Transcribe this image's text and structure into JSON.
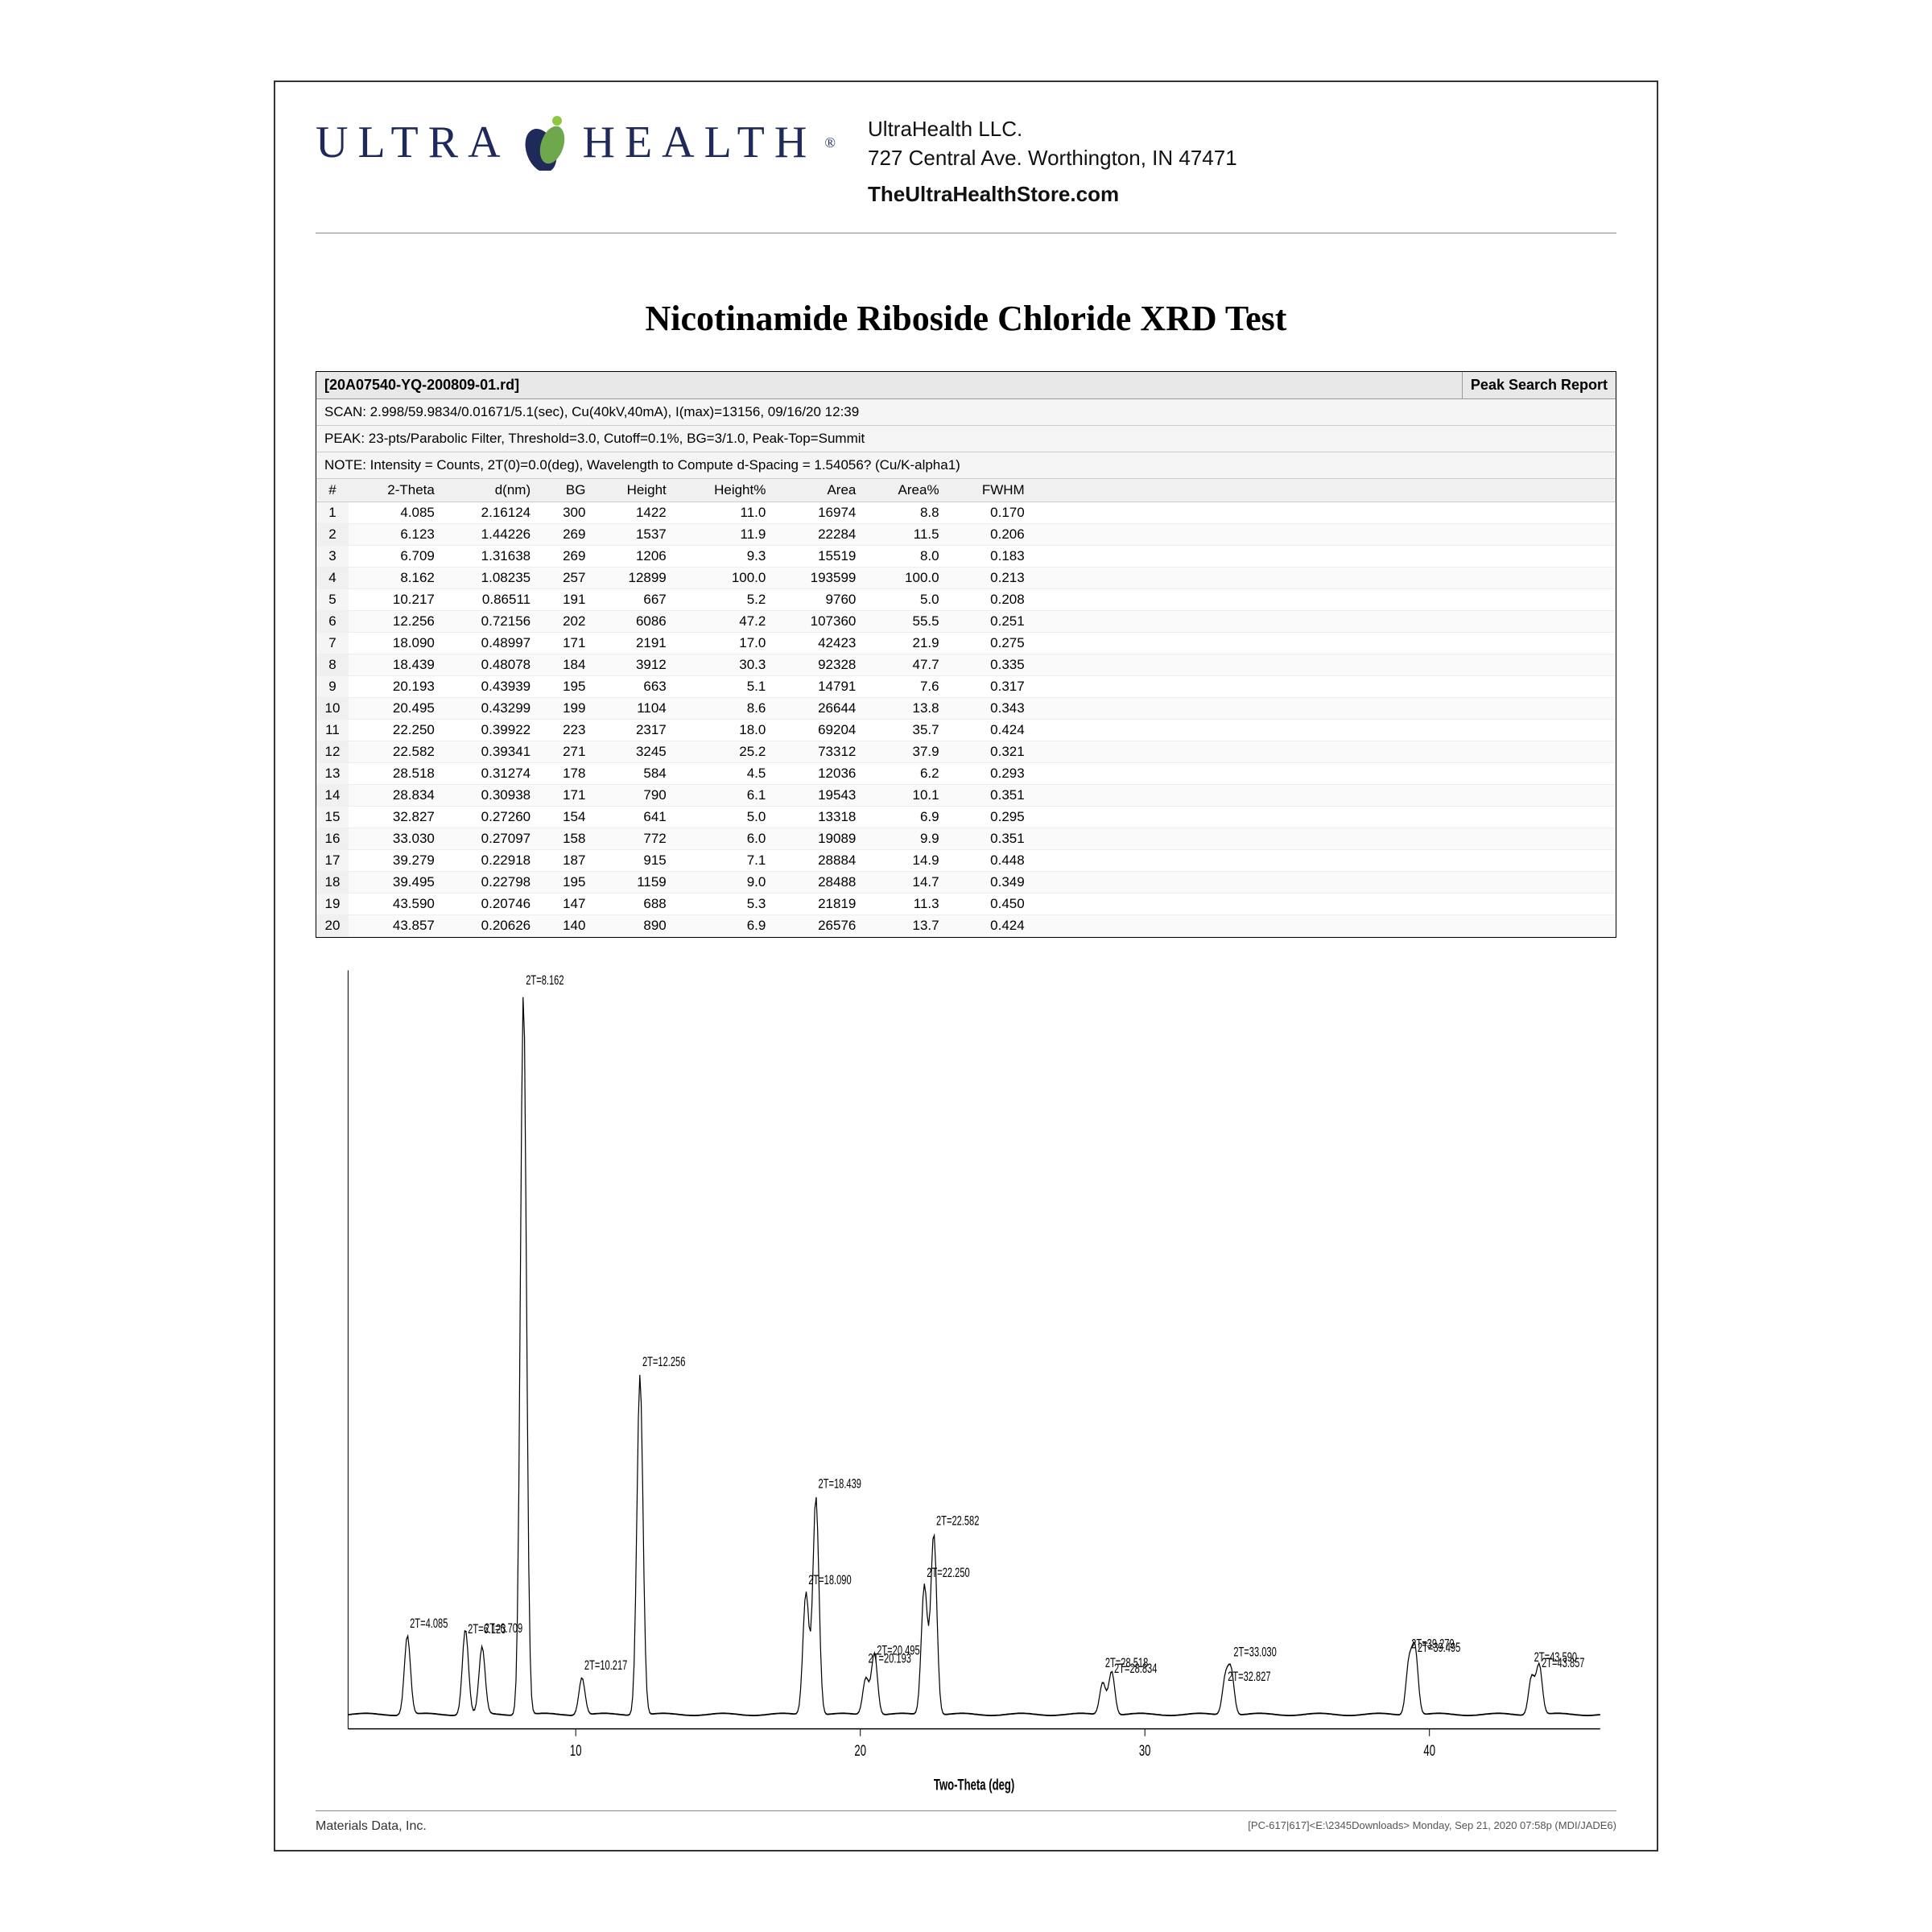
{
  "company": {
    "logo_text_left": "ULTRA",
    "logo_text_right": "HEALTH",
    "name": "UltraHealth LLC.",
    "address": "727 Central Ave. Worthington, IN 47471",
    "website": "TheUltraHealthStore.com"
  },
  "title": "Nicotinamide Riboside Chloride XRD Test",
  "report": {
    "file_id": "[20A07540-YQ-200809-01.rd]",
    "header_right": "Peak Search Report",
    "scan_line": "SCAN: 2.998/59.9834/0.01671/5.1(sec), Cu(40kV,40mA), I(max)=13156, 09/16/20 12:39",
    "peak_line": "PEAK: 23-pts/Parabolic Filter, Threshold=3.0, Cutoff=0.1%, BG=3/1.0, Peak-Top=Summit",
    "note_line": "NOTE: Intensity = Counts, 2T(0)=0.0(deg), Wavelength to Compute d-Spacing = 1.54056? (Cu/K-alpha1)",
    "columns": [
      "#",
      "2-Theta",
      "d(nm)",
      "BG",
      "Height",
      "Height%",
      "Area",
      "Area%",
      "FWHM"
    ],
    "rows": [
      [
        "1",
        "4.085",
        "2.16124",
        "300",
        "1422",
        "11.0",
        "16974",
        "8.8",
        "0.170"
      ],
      [
        "2",
        "6.123",
        "1.44226",
        "269",
        "1537",
        "11.9",
        "22284",
        "11.5",
        "0.206"
      ],
      [
        "3",
        "6.709",
        "1.31638",
        "269",
        "1206",
        "9.3",
        "15519",
        "8.0",
        "0.183"
      ],
      [
        "4",
        "8.162",
        "1.08235",
        "257",
        "12899",
        "100.0",
        "193599",
        "100.0",
        "0.213"
      ],
      [
        "5",
        "10.217",
        "0.86511",
        "191",
        "667",
        "5.2",
        "9760",
        "5.0",
        "0.208"
      ],
      [
        "6",
        "12.256",
        "0.72156",
        "202",
        "6086",
        "47.2",
        "107360",
        "55.5",
        "0.251"
      ],
      [
        "7",
        "18.090",
        "0.48997",
        "171",
        "2191",
        "17.0",
        "42423",
        "21.9",
        "0.275"
      ],
      [
        "8",
        "18.439",
        "0.48078",
        "184",
        "3912",
        "30.3",
        "92328",
        "47.7",
        "0.335"
      ],
      [
        "9",
        "20.193",
        "0.43939",
        "195",
        "663",
        "5.1",
        "14791",
        "7.6",
        "0.317"
      ],
      [
        "10",
        "20.495",
        "0.43299",
        "199",
        "1104",
        "8.6",
        "26644",
        "13.8",
        "0.343"
      ],
      [
        "11",
        "22.250",
        "0.39922",
        "223",
        "2317",
        "18.0",
        "69204",
        "35.7",
        "0.424"
      ],
      [
        "12",
        "22.582",
        "0.39341",
        "271",
        "3245",
        "25.2",
        "73312",
        "37.9",
        "0.321"
      ],
      [
        "13",
        "28.518",
        "0.31274",
        "178",
        "584",
        "4.5",
        "12036",
        "6.2",
        "0.293"
      ],
      [
        "14",
        "28.834",
        "0.30938",
        "171",
        "790",
        "6.1",
        "19543",
        "10.1",
        "0.351"
      ],
      [
        "15",
        "32.827",
        "0.27260",
        "154",
        "641",
        "5.0",
        "13318",
        "6.9",
        "0.295"
      ],
      [
        "16",
        "33.030",
        "0.27097",
        "158",
        "772",
        "6.0",
        "19089",
        "9.9",
        "0.351"
      ],
      [
        "17",
        "39.279",
        "0.22918",
        "187",
        "915",
        "7.1",
        "28884",
        "14.9",
        "0.448"
      ],
      [
        "18",
        "39.495",
        "0.22798",
        "195",
        "1159",
        "9.0",
        "28488",
        "14.7",
        "0.349"
      ],
      [
        "19",
        "43.590",
        "0.20746",
        "147",
        "688",
        "5.3",
        "21819",
        "11.3",
        "0.450"
      ],
      [
        "20",
        "43.857",
        "0.20626",
        "140",
        "890",
        "6.9",
        "26576",
        "13.7",
        "0.424"
      ]
    ]
  },
  "chart": {
    "type": "xrd-spectrum",
    "xlabel": "Two-Theta (deg)",
    "x_min": 2,
    "x_max": 46,
    "x_ticks": [
      10,
      20,
      30,
      40
    ],
    "y_min": 0,
    "y_max": 105,
    "baseline": 2,
    "line_color": "#000000",
    "line_width": 1.2,
    "background_color": "#ffffff",
    "axis_color": "#000000",
    "label_fontsize": 13,
    "tick_fontsize": 13,
    "peak_label_fontsize": 11,
    "peaks": [
      {
        "x": 4.085,
        "h": 11.0,
        "label": "2T=4.085",
        "label_y_offset": 0
      },
      {
        "x": 6.123,
        "h": 11.9,
        "label": "2T=6.123",
        "label_y_offset": 10
      },
      {
        "x": 6.709,
        "h": 9.3,
        "label": "2T=6.709",
        "label_y_offset": -6
      },
      {
        "x": 8.162,
        "h": 100.0,
        "label": "2T=8.162",
        "label_y_offset": 0
      },
      {
        "x": 10.217,
        "h": 5.2,
        "label": "2T=10.217",
        "label_y_offset": 0
      },
      {
        "x": 12.256,
        "h": 47.2,
        "label": "2T=12.256",
        "label_y_offset": 0
      },
      {
        "x": 18.09,
        "h": 17.0,
        "label": "2T=18.090",
        "label_y_offset": 0
      },
      {
        "x": 18.439,
        "h": 30.3,
        "label": "2T=18.439",
        "label_y_offset": 0
      },
      {
        "x": 20.193,
        "h": 5.1,
        "label": "2T=20.193",
        "label_y_offset": -6
      },
      {
        "x": 20.495,
        "h": 8.6,
        "label": "2T=20.495",
        "label_y_offset": 8
      },
      {
        "x": 22.25,
        "h": 18.0,
        "label": "2T=22.250",
        "label_y_offset": 0
      },
      {
        "x": 22.582,
        "h": 25.2,
        "label": "2T=22.582",
        "label_y_offset": 0
      },
      {
        "x": 28.518,
        "h": 4.5,
        "label": "2T=28.518",
        "label_y_offset": -6
      },
      {
        "x": 28.834,
        "h": 6.1,
        "label": "2T=28.834",
        "label_y_offset": 8
      },
      {
        "x": 32.827,
        "h": 5.0,
        "label": "2T=32.827",
        "label_y_offset": 8
      },
      {
        "x": 33.03,
        "h": 6.0,
        "label": "2T=33.030",
        "label_y_offset": -6
      },
      {
        "x": 39.279,
        "h": 7.1,
        "label": "2T=39.279",
        "label_y_offset": -6
      },
      {
        "x": 39.495,
        "h": 9.0,
        "label": "2T=39.495",
        "label_y_offset": 8
      },
      {
        "x": 43.59,
        "h": 5.3,
        "label": "2T=43.590",
        "label_y_offset": -6
      },
      {
        "x": 43.857,
        "h": 6.9,
        "label": "2T=43.857",
        "label_y_offset": 8
      }
    ]
  },
  "footer": {
    "left": "Materials Data, Inc.",
    "right": "[PC-617|617]<E:\\2345Downloads> Monday, Sep 21, 2020 07:58p (MDI/JADE6)"
  }
}
